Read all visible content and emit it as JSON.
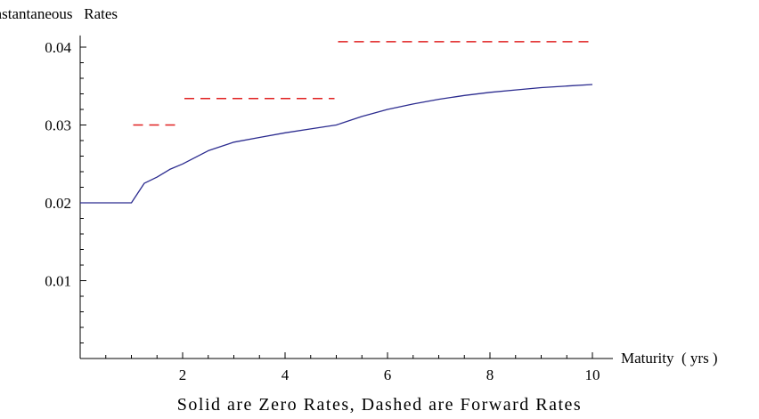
{
  "chart_data": {
    "type": "line",
    "title": "",
    "ylabel": "Instantaneous   Rates",
    "xlabel": "Maturity  ( yrs )",
    "caption": "Solid are Zero Rates, Dashed are Forward Rates",
    "xlim": [
      0,
      10.4
    ],
    "ylim": [
      0,
      0.0415
    ],
    "x_ticks": [
      2,
      4,
      6,
      8,
      10
    ],
    "x_tick_labels": [
      "2",
      "4",
      "6",
      "8",
      "10"
    ],
    "y_ticks": [
      0.01,
      0.02,
      0.03,
      0.04
    ],
    "y_tick_labels": [
      "0.01",
      "0.02",
      "0.03",
      "0.04"
    ],
    "grid": false,
    "series": [
      {
        "style": "solid",
        "color": "#2b2b8f",
        "x": [
          0,
          0.5,
          1,
          1.25,
          1.5,
          1.75,
          2,
          2.5,
          3,
          3.5,
          4,
          4.5,
          5,
          5.5,
          6,
          6.5,
          7,
          7.5,
          8,
          8.5,
          9,
          9.5,
          10
        ],
        "y": [
          0.02,
          0.02,
          0.02,
          0.0225,
          0.0233,
          0.0243,
          0.025,
          0.0267,
          0.0278,
          0.0284,
          0.029,
          0.0295,
          0.03,
          0.0311,
          0.032,
          0.0327,
          0.0333,
          0.0338,
          0.0342,
          0.0345,
          0.0348,
          0.035,
          0.0352
        ]
      },
      {
        "style": "dashed",
        "color": "#e02020",
        "segments": [
          {
            "x": [
              1,
              2
            ],
            "y": 0.03
          },
          {
            "x": [
              2,
              5
            ],
            "y": 0.0334
          },
          {
            "x": [
              5,
              10
            ],
            "y": 0.0407
          }
        ]
      }
    ]
  }
}
